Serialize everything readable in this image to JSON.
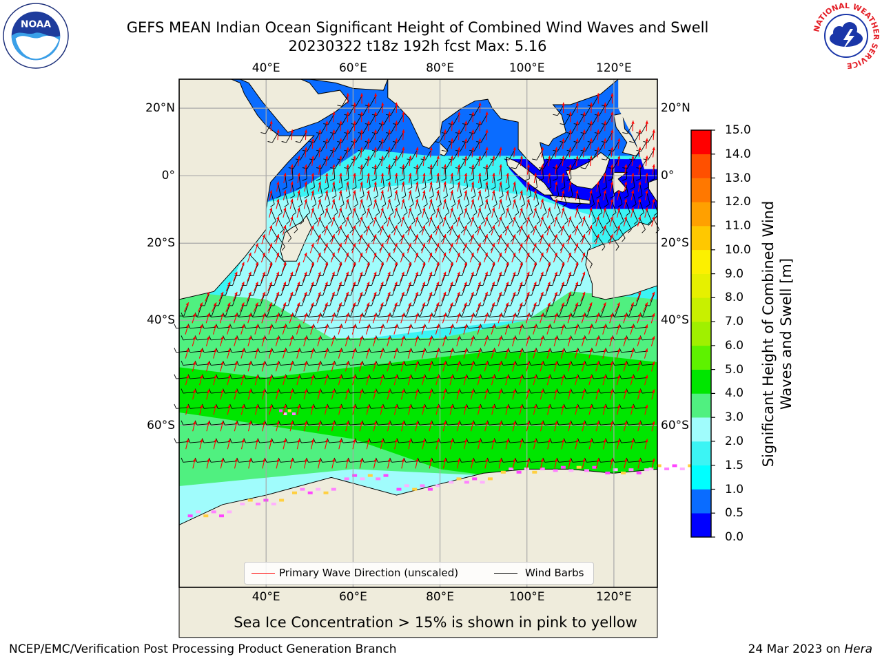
{
  "title": {
    "line1": "GEFS MEAN Indian Ocean Significant Height of Combined Wind Waves and Swell",
    "line2": "20230322 t18z 192h fcst   Max: 5.16"
  },
  "logos": {
    "left": "noaa-logo",
    "right": "national-weather-service-logo",
    "left_text": "NOAA",
    "right_ring_text": "NATIONAL WEATHER SERVICE"
  },
  "map": {
    "longitude_labels": [
      "40°E",
      "60°E",
      "80°E",
      "100°E",
      "120°E"
    ],
    "latitude_labels": [
      "20°N",
      "0°",
      "20°S",
      "40°S",
      "60°S"
    ],
    "extent": {
      "lon_min": 20,
      "lon_max": 130,
      "lat_min": -77,
      "lat_max": 28
    },
    "projection": "mercator",
    "grid": true,
    "land_color": "#efecdc",
    "variable": "Significant Height of Combined Wind Waves and Swell",
    "units": "m"
  },
  "colorbar": {
    "label": "Significant Height of Combined Wind Waves and Swell [m]",
    "ticks": [
      "15.0",
      "14.0",
      "13.0",
      "12.0",
      "11.0",
      "10.0",
      "9.0",
      "8.0",
      "7.0",
      "6.0",
      "5.0",
      "4.0",
      "3.0",
      "2.0",
      "1.5",
      "1.0",
      "0.5",
      "0.0"
    ],
    "levels": [
      0.0,
      0.5,
      1.0,
      1.5,
      2.0,
      3.0,
      4.0,
      5.0,
      6.0,
      7.0,
      8.0,
      9.0,
      10.0,
      11.0,
      12.0,
      13.0,
      14.0,
      15.0
    ],
    "colors": [
      "#0000ff",
      "#0a6cff",
      "#00ffff",
      "#3cf4f4",
      "#a0fcfc",
      "#50f080",
      "#00e600",
      "#5ef200",
      "#a0f000",
      "#c8f000",
      "#e6f000",
      "#fcf000",
      "#ffc800",
      "#ffa000",
      "#ff7800",
      "#ff5000",
      "#ff0000"
    ]
  },
  "legend": {
    "items": [
      {
        "label": "Primary Wave Direction (unscaled)",
        "color": "#ff0000"
      },
      {
        "label": "Wind Barbs",
        "color": "#000000"
      }
    ]
  },
  "sea_ice_note": "Sea Ice Concentration > 15% is shown in pink to yellow",
  "footer": {
    "left": "NCEP/EMC/Verification Post Processing Product Generation Branch",
    "date": "24 Mar 2023 on ",
    "host": "Hera"
  }
}
